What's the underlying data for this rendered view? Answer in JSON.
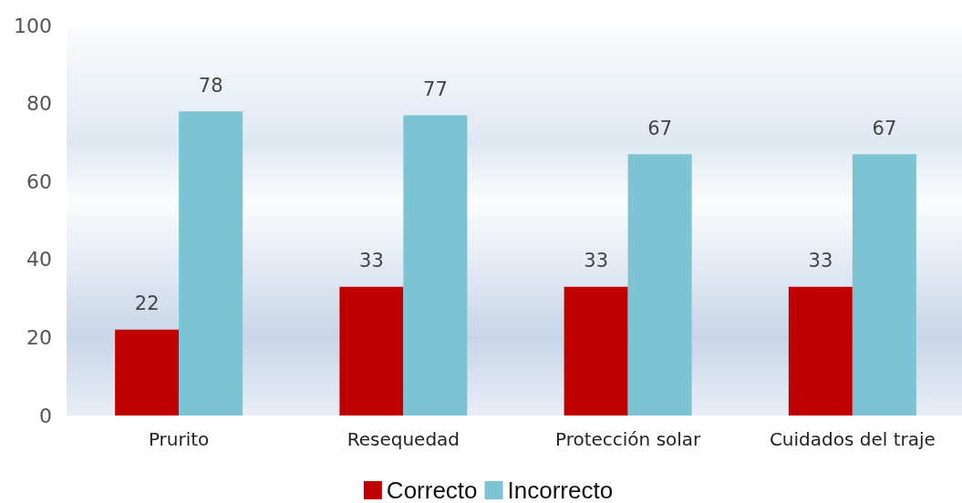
{
  "chart_data": {
    "type": "bar",
    "categories": [
      "Prurito",
      "Resequedad",
      "Protección solar",
      "Cuidados del traje"
    ],
    "series": [
      {
        "name": "Correcto",
        "color": "#c00000",
        "values": [
          22,
          33,
          33,
          33
        ]
      },
      {
        "name": "Incorrecto",
        "color": "#7cc3d3",
        "values": [
          78,
          77,
          67,
          67
        ]
      }
    ],
    "ylim": [
      0,
      100
    ],
    "yticks": [
      0,
      20,
      40,
      60,
      80,
      100
    ],
    "grid": false,
    "legend": "bottom",
    "data_labels": true
  }
}
